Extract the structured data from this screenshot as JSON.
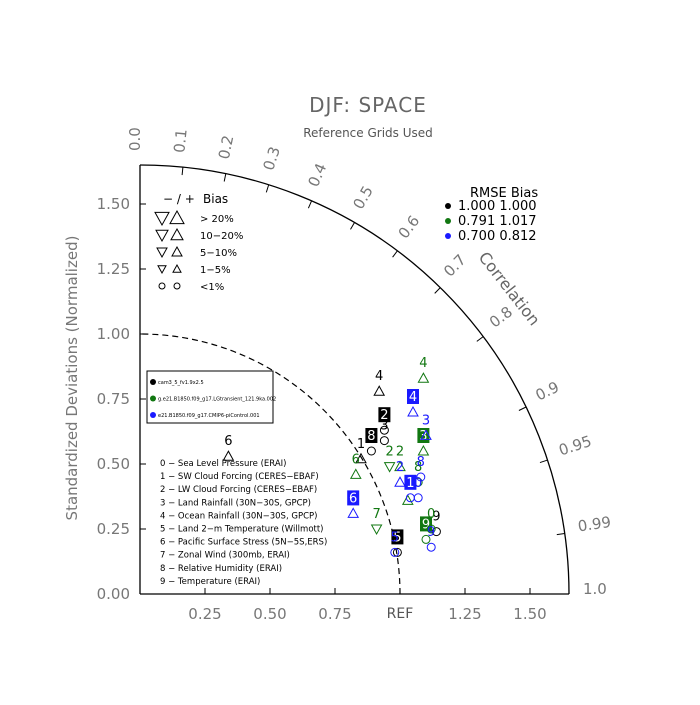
{
  "chart_data": {
    "type": "scatter",
    "subtype": "taylor-diagram",
    "title": "DJF: SPACE",
    "subtitle": "Reference Grids Used",
    "ylabel": "Standardized Deviations (Normalized)",
    "ref_label": "REF",
    "correlation_label": "Correlation",
    "std_range": [
      0,
      1.65
    ],
    "x_ticks": [
      "0.25",
      "0.50",
      "0.75",
      "1.25",
      "1.50"
    ],
    "x_tick_values": [
      0.25,
      0.5,
      0.75,
      1.25,
      1.5
    ],
    "y_ticks": [
      "0.00",
      "0.25",
      "0.50",
      "0.75",
      "1.00",
      "1.25",
      "1.50"
    ],
    "y_tick_values": [
      0,
      0.25,
      0.5,
      0.75,
      1.0,
      1.25,
      1.5
    ],
    "corr_ticks": [
      "0.0",
      "0.1",
      "0.2",
      "0.3",
      "0.4",
      "0.5",
      "0.6",
      "0.7",
      "0.8",
      "0.9",
      "0.95",
      "0.99",
      "1.0"
    ],
    "corr_tick_values": [
      0.0,
      0.1,
      0.2,
      0.3,
      0.4,
      0.5,
      0.6,
      0.7,
      0.8,
      0.9,
      0.95,
      0.99,
      1.0
    ],
    "reference_circle_std": 1.0,
    "bias_legend": {
      "header_minus_plus": "− / +",
      "header_bias": "Bias",
      "rows": [
        "> 20%",
        "10−20%",
        "5−10%",
        "1−5%",
        "<1%"
      ]
    },
    "rmse_legend": {
      "header": "RMSE  Bias",
      "rows": [
        {
          "color": "#000000",
          "text": "1.000 1.000"
        },
        {
          "color": "#117711",
          "text": "0.791 1.017"
        },
        {
          "color": "#1a1aff",
          "text": "0.700 0.812"
        }
      ]
    },
    "case_legend": [
      {
        "color": "#000000",
        "text": "cam3_5_fv1.9x2.5"
      },
      {
        "color": "#117711",
        "text": "g.e21.B1850.f09_g17.LGtransient_121.9ka.002"
      },
      {
        "color": "#1a1aff",
        "text": "e21.B1850.f09_g17.CMIP6-piControl.001"
      }
    ],
    "variable_legend": [
      "0 − Sea Level Pressure (ERAI)",
      "1 − SW Cloud Forcing (CERES−EBAF)",
      "2 − LW Cloud Forcing (CERES−EBAF)",
      "3 − Land Rainfall (30N−30S, GPCP)",
      "4 − Ocean Rainfall (30N−30S, GPCP)",
      "5 − Land 2−m Temperature (Willmott)",
      "6 − Pacific Surface Stress (5N−5S,ERS)",
      "7 − Zonal Wind (300mb, ERAI)",
      "8 − Relative Humidity (ERAI)",
      "9 − Temperature (ERAI)"
    ],
    "series": [
      {
        "name": "cam3_5_fv1.9x2.5",
        "color": "#000000",
        "points": [
          {
            "id": "1",
            "x": 0.85,
            "y": 0.52,
            "marker": "up-triangle",
            "boxed": false
          },
          {
            "id": "2",
            "x": 0.94,
            "y": 0.63,
            "marker": "circle",
            "boxed": true
          },
          {
            "id": "3",
            "x": 0.94,
            "y": 0.59,
            "marker": "circle",
            "boxed": false
          },
          {
            "id": "4",
            "x": 0.92,
            "y": 0.78,
            "marker": "up-triangle",
            "boxed": false
          },
          {
            "id": "5",
            "x": 0.99,
            "y": 0.16,
            "marker": "circle",
            "boxed": true
          },
          {
            "id": "6",
            "x": 0.34,
            "y": 0.53,
            "marker": "up-triangle",
            "boxed": false
          },
          {
            "id": "8",
            "x": 0.89,
            "y": 0.55,
            "marker": "circle",
            "boxed": true
          },
          {
            "id": "9",
            "x": 1.14,
            "y": 0.24,
            "marker": "circle",
            "boxed": false
          }
        ]
      },
      {
        "name": "g.e21.B1850.f09_g17.LGtransient_121.9ka.002",
        "color": "#117711",
        "points": [
          {
            "id": "2",
            "x": 1.0,
            "y": 0.49,
            "marker": "up-triangle",
            "boxed": false
          },
          {
            "id": "3",
            "x": 1.09,
            "y": 0.55,
            "marker": "up-triangle",
            "boxed": true
          },
          {
            "id": "4",
            "x": 1.09,
            "y": 0.83,
            "marker": "up-triangle",
            "boxed": false
          },
          {
            "id": "6",
            "x": 0.83,
            "y": 0.46,
            "marker": "up-triangle",
            "boxed": false
          },
          {
            "id": "7",
            "x": 0.91,
            "y": 0.25,
            "marker": "down-triangle",
            "boxed": false
          },
          {
            "id": "9",
            "x": 1.1,
            "y": 0.21,
            "marker": "circle",
            "boxed": true
          },
          {
            "id": "0",
            "x": 1.12,
            "y": 0.25,
            "marker": "circle",
            "boxed": false
          },
          {
            "id": "1",
            "x": 1.03,
            "y": 0.36,
            "marker": "up-triangle",
            "boxed": false
          },
          {
            "id": "2",
            "x": 0.96,
            "y": 0.49,
            "marker": "down-triangle",
            "boxed": false
          },
          {
            "id": "8",
            "x": 1.07,
            "y": 0.43,
            "marker": "circle",
            "boxed": false
          }
        ]
      },
      {
        "name": "e21.B1850.f09_g17.CMIP6-piControl.001",
        "color": "#1a1aff",
        "points": [
          {
            "id": "1",
            "x": 1.04,
            "y": 0.37,
            "marker": "circle",
            "boxed": true
          },
          {
            "id": "3",
            "x": 1.1,
            "y": 0.61,
            "marker": "up-triangle",
            "boxed": false
          },
          {
            "id": "4",
            "x": 1.05,
            "y": 0.7,
            "marker": "up-triangle",
            "boxed": true
          },
          {
            "id": "5",
            "x": 0.98,
            "y": 0.16,
            "marker": "circle",
            "boxed": false
          },
          {
            "id": "6",
            "x": 0.82,
            "y": 0.31,
            "marker": "up-triangle",
            "boxed": true
          },
          {
            "id": "8",
            "x": 1.08,
            "y": 0.45,
            "marker": "circle",
            "boxed": false
          },
          {
            "id": "9",
            "x": 1.12,
            "y": 0.18,
            "marker": "circle",
            "boxed": false
          },
          {
            "id": "0",
            "x": 1.07,
            "y": 0.37,
            "marker": "circle",
            "boxed": false
          },
          {
            "id": "2",
            "x": 1.0,
            "y": 0.43,
            "marker": "up-triangle",
            "boxed": false
          }
        ]
      }
    ]
  }
}
